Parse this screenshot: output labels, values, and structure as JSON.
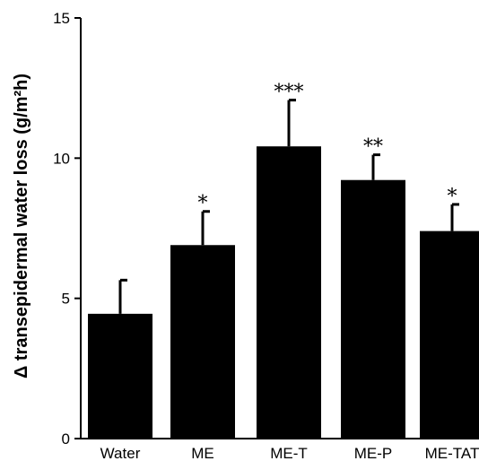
{
  "chart_data": {
    "type": "bar",
    "ylabel": "Δ transepidermal water loss (g/m²h)",
    "xlabel": "",
    "ylim": [
      0,
      15
    ],
    "yticks": [
      0,
      5,
      10,
      15
    ],
    "categories": [
      "Water",
      "ME",
      "ME-T",
      "ME-P",
      "ME-TAT"
    ],
    "values": [
      4.45,
      6.9,
      10.42,
      9.22,
      7.4
    ],
    "errors": [
      1.2,
      1.2,
      1.65,
      0.9,
      0.95
    ],
    "significance": [
      "",
      "*",
      "***",
      "**",
      "*"
    ],
    "bar_color": "#000000",
    "grid": false,
    "legend": "none"
  }
}
